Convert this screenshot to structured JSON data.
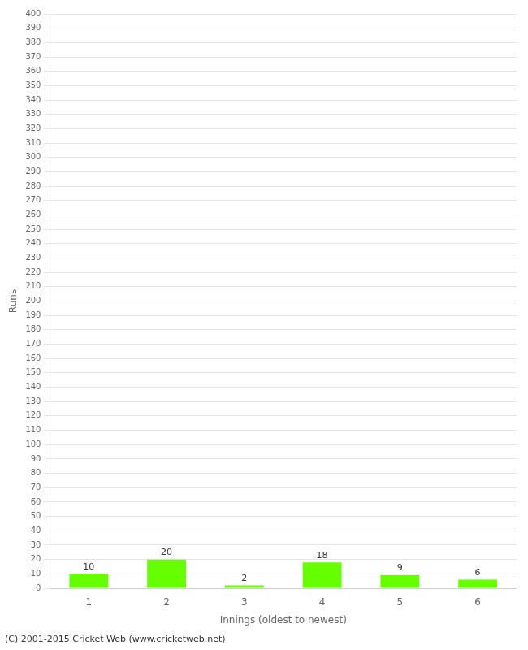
{
  "chart_data": {
    "type": "bar",
    "xlabel": "Innings (oldest to newest)",
    "ylabel": "Runs",
    "categories": [
      1,
      2,
      3,
      4,
      5,
      6
    ],
    "values": [
      10,
      20,
      2,
      18,
      9,
      6
    ],
    "color": "#66ff00",
    "ylim": [
      0,
      400
    ],
    "yticks": [
      0,
      10,
      20,
      30,
      40,
      50,
      60,
      70,
      80,
      90,
      100,
      110,
      120,
      130,
      140,
      150,
      160,
      170,
      180,
      190,
      200,
      210,
      220,
      230,
      240,
      250,
      260,
      270,
      280,
      290,
      300,
      310,
      320,
      330,
      340,
      350,
      360,
      370,
      380,
      390,
      400
    ],
    "grid": true,
    "data_labels": true,
    "annotations": [
      "(C) 2001-2015 Cricket Web (www.cricketweb.net)"
    ]
  }
}
